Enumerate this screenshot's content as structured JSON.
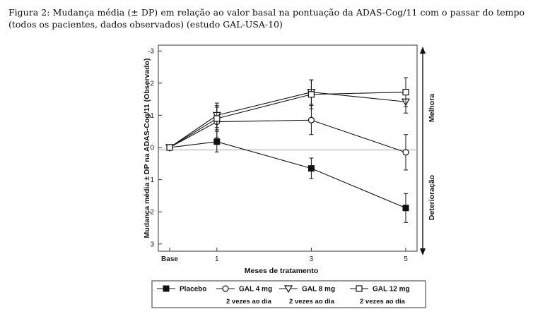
{
  "caption": "Figura 2: Mudança média (± DP) em relação ao valor basal na pontuação da ADAS-Cog/11 com o passar do tempo (todos os pacientes, dados observados) (estudo GAL-USA-10)",
  "chart_data": {
    "type": "line",
    "ylabel": "Mudança média ± DP na ADAS-Cog/11 (Observado)",
    "xlabel": "Meses de tratamento",
    "x_ticks": [
      {
        "value": 0,
        "label": "Base"
      },
      {
        "value": 1,
        "label": "1"
      },
      {
        "value": 3,
        "label": "3"
      },
      {
        "value": 5,
        "label": "5"
      }
    ],
    "y_ticks": [
      {
        "value": -3,
        "label": "-3"
      },
      {
        "value": -2,
        "label": "-2"
      },
      {
        "value": -1,
        "label": "-1"
      },
      {
        "value": 0,
        "label": "0"
      },
      {
        "value": 1,
        "label": "1"
      },
      {
        "value": 2,
        "label": "2"
      },
      {
        "value": 3,
        "label": "3"
      }
    ],
    "ylim": [
      -3.2,
      3.4
    ],
    "xlim": [
      -0.3,
      5.5
    ],
    "y_inverted": true,
    "side_labels": {
      "top": "Melhora",
      "bottom": "Deterioração"
    },
    "reference_line": 0.08,
    "series": [
      {
        "name": "Placebo",
        "marker": "filled-square",
        "x": [
          0,
          1,
          3,
          5
        ],
        "y": [
          0,
          -0.18,
          0.65,
          1.88
        ],
        "err": [
          0,
          0.32,
          0.32,
          0.45
        ]
      },
      {
        "name": "GAL 4 mg",
        "subtitle": "2 vezes ao dia",
        "marker": "open-circle",
        "x": [
          0,
          1,
          3,
          5
        ],
        "y": [
          0,
          -0.8,
          -0.85,
          0.15
        ],
        "err": [
          0,
          0.5,
          0.45,
          0.55
        ]
      },
      {
        "name": "GAL 8 mg",
        "subtitle": "2 vezes ao dia",
        "marker": "open-triangle-down",
        "x": [
          0,
          1,
          3,
          5
        ],
        "y": [
          0,
          -1.0,
          -1.72,
          -1.42
        ],
        "err": [
          0,
          0.38,
          0.38,
          0.35
        ]
      },
      {
        "name": "GAL 12 mg",
        "subtitle": "2 vezes ao dia",
        "marker": "open-square",
        "x": [
          0,
          1,
          3,
          5
        ],
        "y": [
          0,
          -0.9,
          -1.65,
          -1.72
        ],
        "err": [
          0,
          0.35,
          0.45,
          0.45
        ]
      }
    ]
  }
}
